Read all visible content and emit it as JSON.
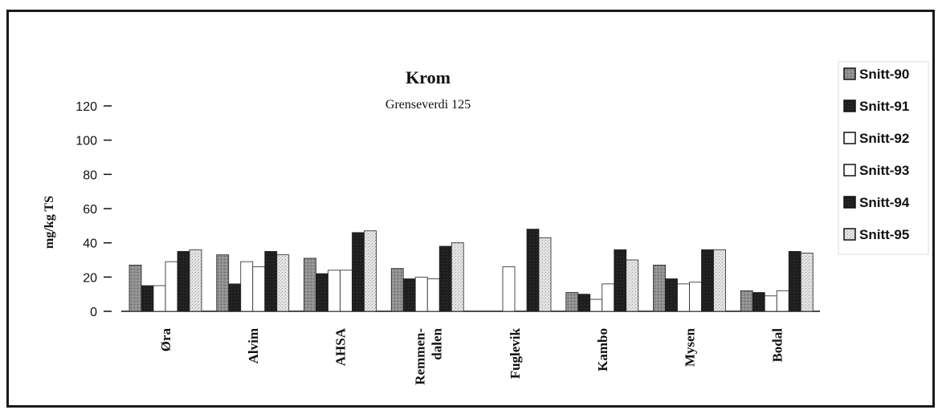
{
  "chart_data": {
    "type": "bar",
    "title": "Krom",
    "subtitle": "Grenseverdi 125",
    "ylabel": "mg/kg TS",
    "xlabel": "",
    "ylim": [
      0,
      120
    ],
    "yticks": [
      0,
      20,
      40,
      60,
      80,
      100,
      120
    ],
    "grid": false,
    "legend_position": "right",
    "categories": [
      "Øra",
      "Alvim",
      "AHSA",
      "Remmen-dalen",
      "Fuglevik",
      "Kambo",
      "Mysen",
      "Bodal"
    ],
    "series": [
      {
        "name": "Snitt-90",
        "color": "#8c8c8c",
        "values": [
          27,
          33,
          31,
          25,
          null,
          11,
          27,
          12
        ]
      },
      {
        "name": "Snitt-91",
        "color": "#202020",
        "values": [
          15,
          16,
          22,
          19,
          null,
          10,
          19,
          11
        ]
      },
      {
        "name": "Snitt-92",
        "color": "#ffffff",
        "values": [
          15,
          29,
          24,
          20,
          26,
          7,
          16,
          9
        ]
      },
      {
        "name": "Snitt-93",
        "color": "#ffffff",
        "values": [
          29,
          26,
          24,
          19,
          null,
          16,
          17,
          12
        ]
      },
      {
        "name": "Snitt-94",
        "color": "#202020",
        "values": [
          35,
          35,
          46,
          38,
          48,
          36,
          36,
          35
        ]
      },
      {
        "name": "Snitt-95",
        "color": "#d4d4d4",
        "values": [
          36,
          33,
          47,
          40,
          43,
          30,
          36,
          34
        ]
      }
    ]
  }
}
